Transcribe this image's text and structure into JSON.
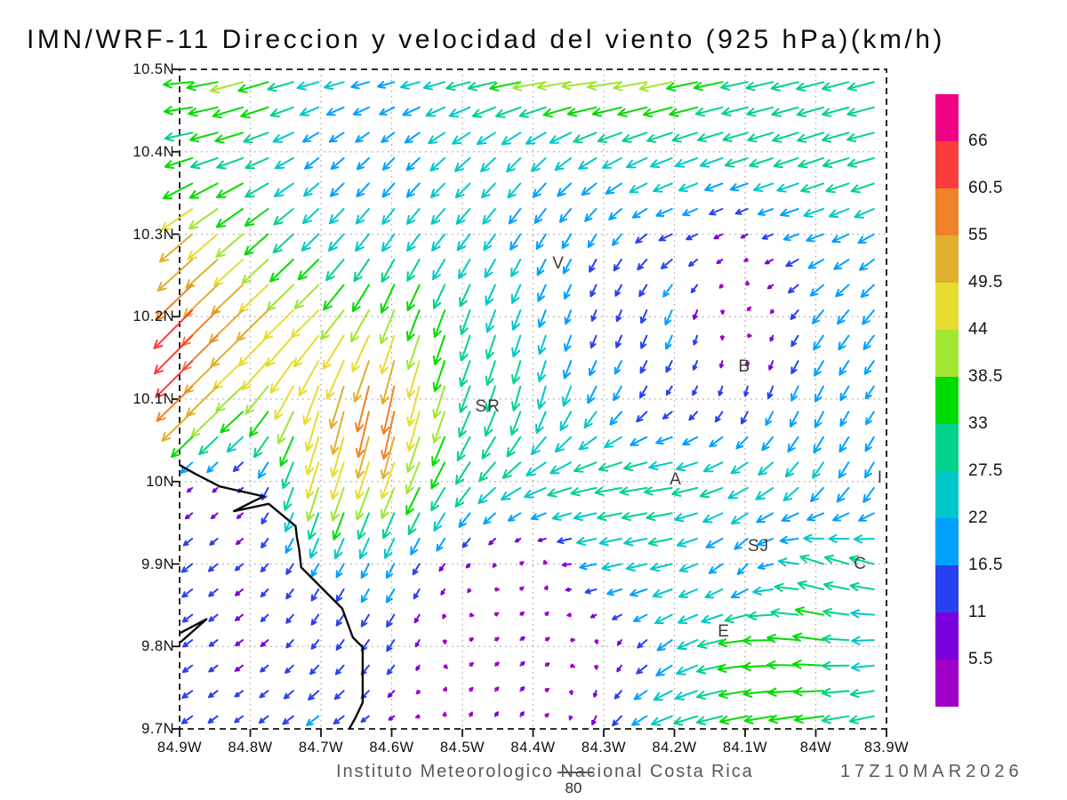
{
  "title": "IMN/WRF-11 Direccion y velocidad del viento (925 hPa)(km/h)",
  "footer": {
    "credit": "Instituto Meteorologico Nacional Costa Rica",
    "datetime": "17Z10MAR2026",
    "reference_label": "80"
  },
  "chart_data": {
    "type": "quiver",
    "title": "IMN/WRF-11 Direccion y velocidad del viento (925 hPa)(km/h)",
    "units": "km/h",
    "level": "925 hPa",
    "reference_speed_kmh": 80,
    "grid_on": true,
    "x_axis": {
      "values": [
        84.9,
        84.8,
        84.7,
        84.6,
        84.5,
        84.4,
        84.3,
        84.2,
        84.1,
        84.0,
        83.9
      ],
      "labels": [
        "84.9W",
        "84.8W",
        "84.7W",
        "84.6W",
        "84.5W",
        "84.4W",
        "84.3W",
        "84.2W",
        "84.1W",
        "84W",
        "83.9W"
      ]
    },
    "y_axis": {
      "values": [
        10.5,
        10.4,
        10.3,
        10.2,
        10.1,
        10.0,
        9.9,
        9.8,
        9.7
      ],
      "labels": [
        "10.5N",
        "10.4N",
        "10.3N",
        "10.2N",
        "10.1N",
        "10N",
        "9.9N",
        "9.8N",
        "9.7N"
      ]
    },
    "grid": {
      "lon_w": [
        84.9,
        84.8,
        84.7,
        84.6,
        84.5,
        84.4,
        84.3,
        84.2,
        84.1,
        84.0,
        83.9
      ],
      "lat_n": [
        10.5,
        10.4,
        10.3,
        10.2,
        10.1,
        10.0,
        9.9,
        9.8,
        9.7
      ],
      "u_kmh": [
        [
          -33,
          -40,
          -26,
          -20,
          -28,
          -42,
          -44,
          -40,
          -32,
          -32,
          -30
        ],
        [
          -32,
          -30,
          -15,
          -13,
          -18,
          -16,
          -22,
          -26,
          -28,
          -30,
          -32
        ],
        [
          -40,
          -30,
          -19,
          -14,
          -15,
          -11,
          -9,
          -15,
          -7,
          -20,
          -18
        ],
        [
          -47,
          -39,
          -33,
          -16,
          -10,
          -8,
          -4,
          -7,
          5,
          -12,
          -13
        ],
        [
          -44,
          -28,
          -13,
          -12,
          -12,
          -7,
          -11,
          -6,
          -4,
          -9,
          -9
        ],
        [
          -5,
          -5,
          -13,
          -15,
          -17,
          -26,
          -31,
          -33,
          -24,
          -14,
          -10
        ],
        [
          -13,
          -8,
          -8,
          -9,
          -5,
          4,
          -22,
          -25,
          -11,
          -27,
          -29
        ],
        [
          -11,
          -8,
          -8,
          -9,
          4,
          5,
          2,
          -17,
          -36,
          -38,
          -23
        ],
        [
          -13,
          -9,
          -15,
          -6,
          2,
          4,
          -7,
          -26,
          -32,
          -34,
          -28
        ]
      ],
      "v_kmh": [
        [
          0,
          -12,
          -6,
          -4,
          -6,
          -6,
          -4,
          -8,
          -6,
          -8,
          -8
        ],
        [
          -8,
          -10,
          -12,
          -13,
          -15,
          -16,
          -12,
          -10,
          -9,
          -10,
          -8
        ],
        [
          -34,
          -26,
          -19,
          -20,
          -19,
          -18,
          -15,
          -7,
          -4,
          -7,
          -11
        ],
        [
          -48,
          -38,
          -33,
          -41,
          -30,
          -22,
          -11,
          -18,
          5,
          -16,
          -17
        ],
        [
          -43,
          -26,
          -48,
          -60,
          -31,
          -29,
          -20,
          -8,
          -14,
          -19,
          -13
        ],
        [
          -4,
          -5,
          -42,
          -38,
          -25,
          -13,
          -6,
          -5,
          -12,
          -18,
          -19
        ],
        [
          -10,
          -7,
          -15,
          -17,
          -5,
          3,
          -5,
          -6,
          -13,
          9,
          7
        ],
        [
          -8,
          -6,
          -10,
          -13,
          2,
          4,
          -3,
          -13,
          -4,
          5,
          -3
        ],
        [
          -9,
          -7,
          -11,
          -3,
          5,
          5,
          -13,
          -9,
          -7,
          -6,
          -7
        ]
      ]
    },
    "colorbar": {
      "thresholds": [
        5.5,
        11,
        16.5,
        22,
        27.5,
        33,
        38.5,
        44,
        49.5,
        55,
        60.5,
        66
      ],
      "labels_top_to_bottom": [
        "66",
        "60.5",
        "55",
        "49.5",
        "44",
        "38.5",
        "33",
        "27.5",
        "22",
        "16.5",
        "11",
        "5.5"
      ],
      "colors_low_to_high": [
        "#a000c8",
        "#7a00dc",
        "#2840f0",
        "#00a0ff",
        "#00c8c8",
        "#00d28c",
        "#00dc00",
        "#a0e632",
        "#e6dc32",
        "#e0af2d",
        "#f08228",
        "#fa3c3c",
        "#f00082"
      ]
    },
    "city_labels": [
      {
        "text": "V",
        "lon_w": 84.364,
        "lat_n": 10.264
      },
      {
        "text": "B",
        "lon_w": 84.101,
        "lat_n": 10.139
      },
      {
        "text": "SR",
        "lon_w": 84.464,
        "lat_n": 10.09
      },
      {
        "text": "A",
        "lon_w": 84.198,
        "lat_n": 10.002
      },
      {
        "text": "I",
        "lon_w": 83.909,
        "lat_n": 10.004
      },
      {
        "text": "SJ",
        "lon_w": 84.081,
        "lat_n": 9.921
      },
      {
        "text": "C",
        "lon_w": 83.937,
        "lat_n": 9.9
      },
      {
        "text": "E",
        "lon_w": 84.13,
        "lat_n": 9.817
      }
    ],
    "coastline_lonlat": [
      [
        [
          84.9,
          10.02
        ],
        [
          84.877,
          10.009
        ],
        [
          84.843,
          9.994
        ],
        [
          84.781,
          9.982
        ],
        [
          84.798,
          9.975
        ],
        [
          84.823,
          9.964
        ],
        [
          84.774,
          9.973
        ],
        [
          84.743,
          9.951
        ],
        [
          84.736,
          9.946
        ],
        [
          84.734,
          9.932
        ],
        [
          84.731,
          9.918
        ],
        [
          84.728,
          9.896
        ],
        [
          84.692,
          9.865
        ],
        [
          84.67,
          9.846
        ],
        [
          84.655,
          9.811
        ],
        [
          84.641,
          9.799
        ],
        [
          84.641,
          9.732
        ],
        [
          84.651,
          9.714
        ],
        [
          84.66,
          9.7
        ]
      ],
      [
        [
          84.9,
          9.816
        ],
        [
          84.862,
          9.833
        ],
        [
          84.899,
          9.805
        ]
      ]
    ]
  }
}
